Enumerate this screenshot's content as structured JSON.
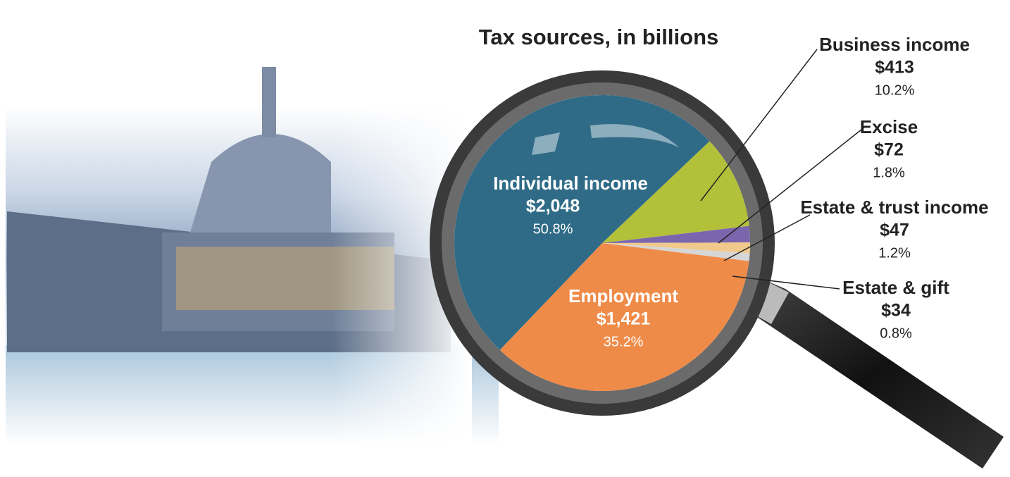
{
  "chart_data": {
    "type": "pie",
    "title": "Tax sources, in billions",
    "categories": [
      "Business income",
      "Excise",
      "Estate & trust income",
      "Estate & gift",
      "Employment",
      "Individual income"
    ],
    "values": [
      413,
      72,
      47,
      34,
      1421,
      2048
    ],
    "value_labels": [
      "$413",
      "$72",
      "$47",
      "$34",
      "$1,421",
      "$2,048"
    ],
    "share_labels": [
      "10.2%",
      "1.8%",
      "1.2%",
      "0.8%",
      "35.2%",
      "50.8%"
    ],
    "colors": [
      "#b3c03a",
      "#7b66ae",
      "#f1c98c",
      "#d6d6d6",
      "#ef8b48",
      "#2f6b87"
    ]
  }
}
